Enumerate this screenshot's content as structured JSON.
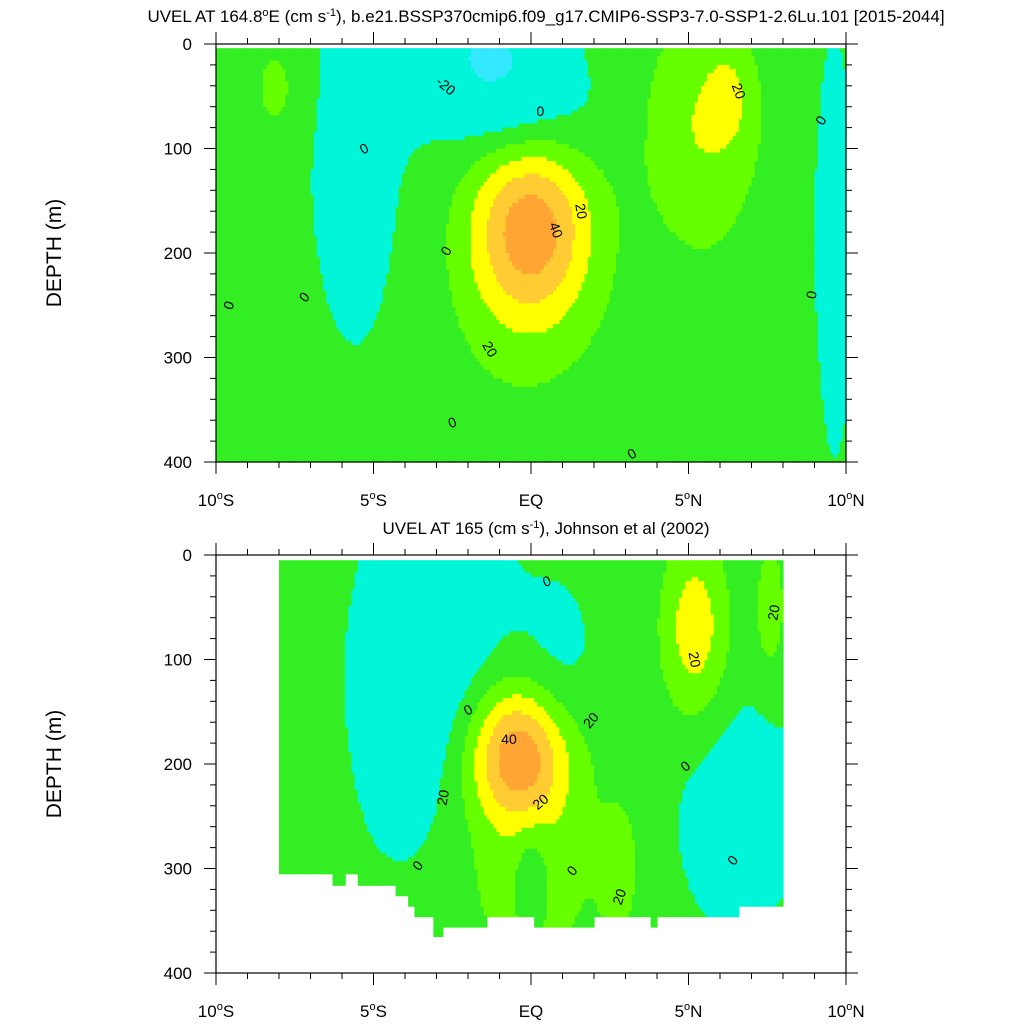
{
  "figure": {
    "colors": {
      "background": "#ffffff",
      "axis": "#000000",
      "contour_line": "#000000"
    },
    "fill_levels": [
      {
        "min": -100,
        "max": -20,
        "color": "#33e8ff"
      },
      {
        "min": -20,
        "max": 0,
        "color": "#00f5d9"
      },
      {
        "min": 0,
        "max": 10,
        "color": "#33ee22"
      },
      {
        "min": 10,
        "max": 20,
        "color": "#66ff00"
      },
      {
        "min": 20,
        "max": 30,
        "color": "#ffff00"
      },
      {
        "min": 30,
        "max": 40,
        "color": "#ffcc33"
      },
      {
        "min": 40,
        "max": 100,
        "color": "#ffa533"
      }
    ]
  },
  "chart_data": [
    {
      "type": "heatmap",
      "title_parts": [
        {
          "text": "UVEL AT 164.8",
          "baseline": "normal"
        },
        {
          "text": "o",
          "baseline": "super"
        },
        {
          "text": "E (cm s",
          "baseline": "normal"
        },
        {
          "text": "-1",
          "baseline": "super"
        },
        {
          "text": "), b.e21.BSSP370cmip6.f09_g17.CMIP6-SSP3-7.0-SSP1-2.6Lu.101 [2015-2044]",
          "baseline": "normal"
        }
      ],
      "ylabel": "DEPTH (m)",
      "xlabel": "",
      "x_ticks": [
        {
          "value": -10,
          "label": "10",
          "degree": true,
          "suffix": "S"
        },
        {
          "value": -5,
          "label": "5",
          "degree": true,
          "suffix": "S"
        },
        {
          "value": 0,
          "label": "EQ",
          "degree": false,
          "suffix": ""
        },
        {
          "value": 5,
          "label": "5",
          "degree": true,
          "suffix": "N"
        },
        {
          "value": 10,
          "label": "10",
          "degree": true,
          "suffix": "N"
        }
      ],
      "y_ticks": [
        0,
        100,
        200,
        300,
        400
      ],
      "xlim": [
        -10,
        10
      ],
      "ylim": [
        0,
        400
      ],
      "y_reversed": true,
      "x_range_data": [
        -10,
        10
      ],
      "y_range_data": [
        4,
        400
      ],
      "contour_interval": 10,
      "features": [
        {
          "lat": -8.1,
          "depth": 42,
          "amp": 10,
          "rx": 0.8,
          "rd": 50
        },
        {
          "lat": -5.5,
          "depth": 100,
          "amp": -6,
          "rx": 1.8,
          "rd": 230
        },
        {
          "lat": -1.3,
          "depth": 10,
          "amp": -24,
          "rx": 2.0,
          "rd": 55
        },
        {
          "lat": -0.3,
          "depth": 70,
          "amp": -10,
          "rx": 2.5,
          "rd": 50
        },
        {
          "lat": 0.0,
          "depth": 175,
          "amp": 40,
          "rx": 1.9,
          "rd": 85
        },
        {
          "lat": -0.3,
          "depth": 260,
          "amp": 8,
          "rx": 2.5,
          "rd": 110
        },
        {
          "lat": 5.4,
          "depth": 80,
          "amp": 17,
          "rx": 1.9,
          "rd": 110
        },
        {
          "lat": 6.3,
          "depth": 50,
          "amp": 10,
          "rx": 0.7,
          "rd": 45
        },
        {
          "lat": 5.5,
          "depth": 330,
          "amp": 6,
          "rx": 2.5,
          "rd": 110
        },
        {
          "lat": 9.6,
          "depth": 200,
          "amp": -6,
          "rx": 0.8,
          "rd": 250
        },
        {
          "lat": 0.5,
          "depth": 400,
          "amp": -4,
          "rx": 1.5,
          "rd": 40
        }
      ],
      "base_value": 3,
      "contour_labels": [
        {
          "text": "-20",
          "lat": -2.7,
          "depth": 40,
          "angle": 40
        },
        {
          "text": "0",
          "lat": 0.3,
          "depth": 64,
          "angle": 0
        },
        {
          "text": "0",
          "lat": -5.3,
          "depth": 100,
          "angle": -30
        },
        {
          "text": "20",
          "lat": 6.6,
          "depth": 45,
          "angle": 70
        },
        {
          "text": "0",
          "lat": 9.2,
          "depth": 73,
          "angle": -60
        },
        {
          "text": "20",
          "lat": 1.6,
          "depth": 160,
          "angle": 80
        },
        {
          "text": "40",
          "lat": 0.8,
          "depth": 178,
          "angle": 70
        },
        {
          "text": "0",
          "lat": -2.7,
          "depth": 198,
          "angle": -60
        },
        {
          "text": "0",
          "lat": -7.2,
          "depth": 242,
          "angle": -50
        },
        {
          "text": "0",
          "lat": -9.6,
          "depth": 250,
          "angle": -70
        },
        {
          "text": "20",
          "lat": -1.3,
          "depth": 292,
          "angle": 60
        },
        {
          "text": "0",
          "lat": 8.9,
          "depth": 240,
          "angle": -80
        },
        {
          "text": "0",
          "lat": -2.5,
          "depth": 362,
          "angle": -20
        },
        {
          "text": "0",
          "lat": 3.2,
          "depth": 392,
          "angle": -30
        }
      ]
    },
    {
      "type": "heatmap",
      "title_parts": [
        {
          "text": "UVEL AT 165 (cm s",
          "baseline": "normal"
        },
        {
          "text": "-1",
          "baseline": "super"
        },
        {
          "text": "), Johnson et al (2002)",
          "baseline": "normal"
        }
      ],
      "ylabel": "DEPTH (m)",
      "xlabel": "",
      "x_ticks": [
        {
          "value": -10,
          "label": "10",
          "degree": true,
          "suffix": "S"
        },
        {
          "value": -5,
          "label": "5",
          "degree": true,
          "suffix": "S"
        },
        {
          "value": 0,
          "label": "EQ",
          "degree": false,
          "suffix": ""
        },
        {
          "value": 5,
          "label": "5",
          "degree": true,
          "suffix": "N"
        },
        {
          "value": 10,
          "label": "10",
          "degree": true,
          "suffix": "N"
        }
      ],
      "y_ticks": [
        0,
        100,
        200,
        300,
        400
      ],
      "xlim": [
        -10,
        10
      ],
      "ylim": [
        0,
        400
      ],
      "y_reversed": true,
      "x_range_data": [
        -8,
        8
      ],
      "y_range_data": [
        5,
        365
      ],
      "contour_interval": 10,
      "features": [
        {
          "lat": -3.0,
          "depth": 130,
          "amp": -12,
          "rx": 2.2,
          "rd": 170
        },
        {
          "lat": -0.4,
          "depth": 190,
          "amp": 42,
          "rx": 1.6,
          "rd": 65
        },
        {
          "lat": -0.2,
          "depth": 290,
          "amp": 14,
          "rx": 2.7,
          "rd": 130
        },
        {
          "lat": 0.8,
          "depth": 130,
          "amp": -7,
          "rx": 1.2,
          "rd": 90
        },
        {
          "lat": 0.0,
          "depth": 300,
          "amp": -12,
          "rx": 0.6,
          "rd": 50
        },
        {
          "lat": 5.2,
          "depth": 70,
          "amp": 24,
          "rx": 1.1,
          "rd": 90
        },
        {
          "lat": 7.6,
          "depth": 50,
          "amp": 14,
          "rx": 0.5,
          "rd": 70
        },
        {
          "lat": 6.5,
          "depth": 240,
          "amp": -9,
          "rx": 1.7,
          "rd": 100
        },
        {
          "lat": -7.5,
          "depth": 260,
          "amp": 6,
          "rx": 1.0,
          "rd": 70
        },
        {
          "lat": 2.8,
          "depth": 300,
          "amp": 12,
          "rx": 0.6,
          "rd": 60
        }
      ],
      "base_value": 2,
      "bottom_depths": [
        {
          "lat": -8.0,
          "depth": 305
        },
        {
          "lat": -6.7,
          "depth": 305
        },
        {
          "lat": -6.3,
          "depth": 316
        },
        {
          "lat": -5.9,
          "depth": 305
        },
        {
          "lat": -5.5,
          "depth": 316
        },
        {
          "lat": -4.7,
          "depth": 316
        },
        {
          "lat": -4.3,
          "depth": 326
        },
        {
          "lat": -3.9,
          "depth": 336
        },
        {
          "lat": -3.7,
          "depth": 346
        },
        {
          "lat": -3.3,
          "depth": 346
        },
        {
          "lat": -3.1,
          "depth": 366
        },
        {
          "lat": -2.8,
          "depth": 356
        },
        {
          "lat": -1.6,
          "depth": 356
        },
        {
          "lat": -1.4,
          "depth": 346
        },
        {
          "lat": -0.4,
          "depth": 346
        },
        {
          "lat": 0.1,
          "depth": 356
        },
        {
          "lat": 1.8,
          "depth": 356
        },
        {
          "lat": 2.0,
          "depth": 346
        },
        {
          "lat": 3.6,
          "depth": 346
        },
        {
          "lat": 3.8,
          "depth": 356
        },
        {
          "lat": 4.0,
          "depth": 346
        },
        {
          "lat": 6.3,
          "depth": 346
        },
        {
          "lat": 6.6,
          "depth": 336
        },
        {
          "lat": 8.0,
          "depth": 336
        }
      ],
      "contour_labels": [
        {
          "text": "0",
          "lat": 0.5,
          "depth": 25,
          "angle": -20
        },
        {
          "text": "20",
          "lat": 7.7,
          "depth": 55,
          "angle": -80
        },
        {
          "text": "20",
          "lat": 5.2,
          "depth": 100,
          "angle": 80
        },
        {
          "text": "0",
          "lat": -2.0,
          "depth": 148,
          "angle": -30
        },
        {
          "text": "20",
          "lat": 1.9,
          "depth": 158,
          "angle": -50
        },
        {
          "text": "40",
          "lat": -0.7,
          "depth": 176,
          "angle": 0
        },
        {
          "text": "0",
          "lat": 4.9,
          "depth": 202,
          "angle": -40
        },
        {
          "text": "20",
          "lat": -2.8,
          "depth": 232,
          "angle": -80
        },
        {
          "text": "20",
          "lat": 0.3,
          "depth": 236,
          "angle": -40
        },
        {
          "text": "0",
          "lat": -3.6,
          "depth": 297,
          "angle": -50
        },
        {
          "text": "0",
          "lat": 1.3,
          "depth": 302,
          "angle": -50
        },
        {
          "text": "0",
          "lat": 6.4,
          "depth": 292,
          "angle": -50
        },
        {
          "text": "20",
          "lat": 2.8,
          "depth": 327,
          "angle": -70
        }
      ]
    }
  ]
}
